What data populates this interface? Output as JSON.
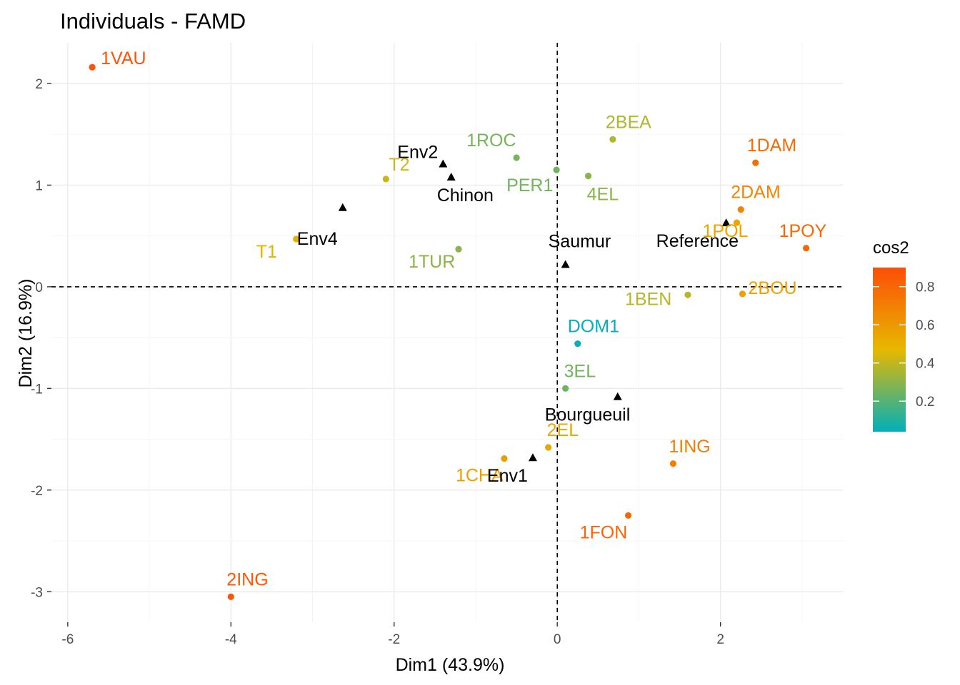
{
  "chart_data": {
    "type": "scatter",
    "title": "Individuals - FAMD",
    "xlabel": "Dim1 (43.9%)",
    "ylabel": "Dim2 (16.9%)",
    "xlim": [
      -6.2,
      3.5
    ],
    "ylim": [
      -3.3,
      2.4
    ],
    "xticks": [
      -6,
      -4,
      -2,
      0,
      2
    ],
    "yticks": [
      -3,
      -2,
      -1,
      0,
      1,
      2
    ],
    "grid": true,
    "reference_lines": {
      "x": 0,
      "y": 0
    },
    "legend": {
      "title": "cos2",
      "position": "right",
      "range": [
        0.04,
        0.9
      ],
      "ticks": [
        0.2,
        0.4,
        0.6,
        0.8
      ],
      "gradient": [
        "#00AFBB",
        "#E7B800",
        "#FC4E07"
      ]
    },
    "individuals": [
      {
        "label": "1VAU",
        "x": -5.7,
        "y": 2.16,
        "cos2": 0.88
      },
      {
        "label": "2BEA",
        "x": 0.68,
        "y": 1.45,
        "cos2": 0.37
      },
      {
        "label": "1ROC",
        "x": -0.5,
        "y": 1.27,
        "cos2": 0.26
      },
      {
        "label": "PER1",
        "x": -0.01,
        "y": 1.15,
        "cos2": 0.25
      },
      {
        "label": "4EL",
        "x": 0.38,
        "y": 1.09,
        "cos2": 0.3
      },
      {
        "label": "1DAM",
        "x": 2.43,
        "y": 1.22,
        "cos2": 0.78
      },
      {
        "label": "T2",
        "x": -2.1,
        "y": 1.06,
        "cos2": 0.42
      },
      {
        "label": "2DAM",
        "x": 2.25,
        "y": 0.76,
        "cos2": 0.68
      },
      {
        "label": "1POY",
        "x": 3.05,
        "y": 0.38,
        "cos2": 0.8
      },
      {
        "label": "1POL",
        "x": 2.2,
        "y": 0.63,
        "cos2": 0.55
      },
      {
        "label": "T1",
        "x": -3.2,
        "y": 0.47,
        "cos2": 0.5
      },
      {
        "label": "1TUR",
        "x": -1.21,
        "y": 0.37,
        "cos2": 0.3
      },
      {
        "label": "1BEN",
        "x": 1.6,
        "y": -0.08,
        "cos2": 0.38
      },
      {
        "label": "2BOU",
        "x": 2.27,
        "y": -0.07,
        "cos2": 0.56
      },
      {
        "label": "DOM1",
        "x": 0.25,
        "y": -0.56,
        "cos2": 0.05
      },
      {
        "label": "3EL",
        "x": 0.1,
        "y": -1.0,
        "cos2": 0.25
      },
      {
        "label": "2EL",
        "x": -0.11,
        "y": -1.58,
        "cos2": 0.55
      },
      {
        "label": "1CHA",
        "x": -0.65,
        "y": -1.69,
        "cos2": 0.58
      },
      {
        "label": "1ING",
        "x": 1.42,
        "y": -1.74,
        "cos2": 0.7
      },
      {
        "label": "1FON",
        "x": 0.87,
        "y": -2.25,
        "cos2": 0.8
      },
      {
        "label": "2ING",
        "x": -4.0,
        "y": -3.05,
        "cos2": 0.86
      }
    ],
    "supplementary": [
      {
        "label": "Env2",
        "x": -1.4,
        "y": 1.21
      },
      {
        "label": "Chinon",
        "x": -1.3,
        "y": 1.08
      },
      {
        "label": "Env4",
        "x": -2.63,
        "y": 0.78
      },
      {
        "label": "Saumur",
        "x": 0.1,
        "y": 0.22
      },
      {
        "label": "Reference",
        "x": 2.07,
        "y": 0.63
      },
      {
        "label": "Bourgueuil",
        "x": 0.74,
        "y": -1.08
      },
      {
        "label": "Env1",
        "x": -0.3,
        "y": -1.68
      }
    ]
  }
}
